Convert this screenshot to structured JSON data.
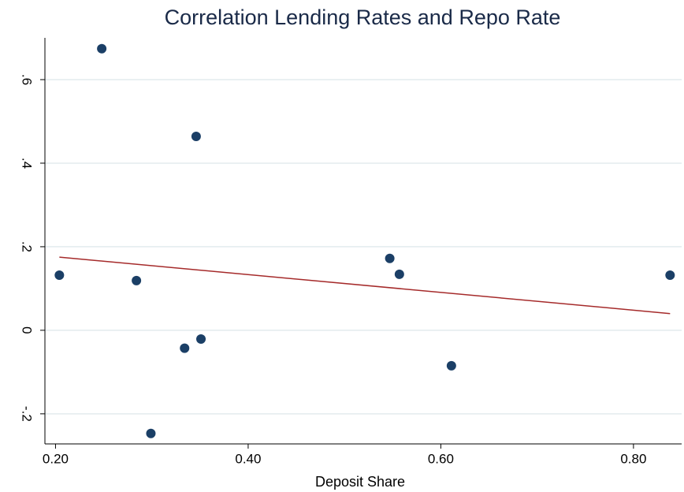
{
  "chart_data": {
    "type": "scatter",
    "title": "Correlation Lending Rates and Repo Rate",
    "x_label": "Deposit Share",
    "x": [
      0.204,
      0.248,
      0.284,
      0.299,
      0.334,
      0.346,
      0.351,
      0.547,
      0.557,
      0.611,
      0.838
    ],
    "values": [
      0.132,
      0.674,
      0.119,
      -0.247,
      -0.043,
      0.464,
      -0.021,
      0.172,
      0.134,
      -0.085,
      0.132
    ],
    "color": "#1b3f66",
    "fit": {
      "x": [
        0.204,
        0.838
      ],
      "values": [
        0.175,
        0.04
      ],
      "color": "#a52a2a"
    },
    "xlim": [
      0.189,
      0.85
    ],
    "ylim": [
      -0.272,
      0.7
    ],
    "xticks": [
      {
        "value": 0.2,
        "label": "0.20"
      },
      {
        "value": 0.4,
        "label": "0.40"
      },
      {
        "value": 0.6,
        "label": "0.60"
      },
      {
        "value": 0.8,
        "label": "0.80"
      }
    ],
    "yticks": [
      {
        "value": -0.2,
        "label": "-.2"
      },
      0,
      {
        "value": 0.2,
        "label": ".2"
      },
      {
        "value": 0.4,
        "label": ".4"
      },
      {
        "value": 0.6,
        "label": ".6"
      }
    ],
    "grid": true
  }
}
